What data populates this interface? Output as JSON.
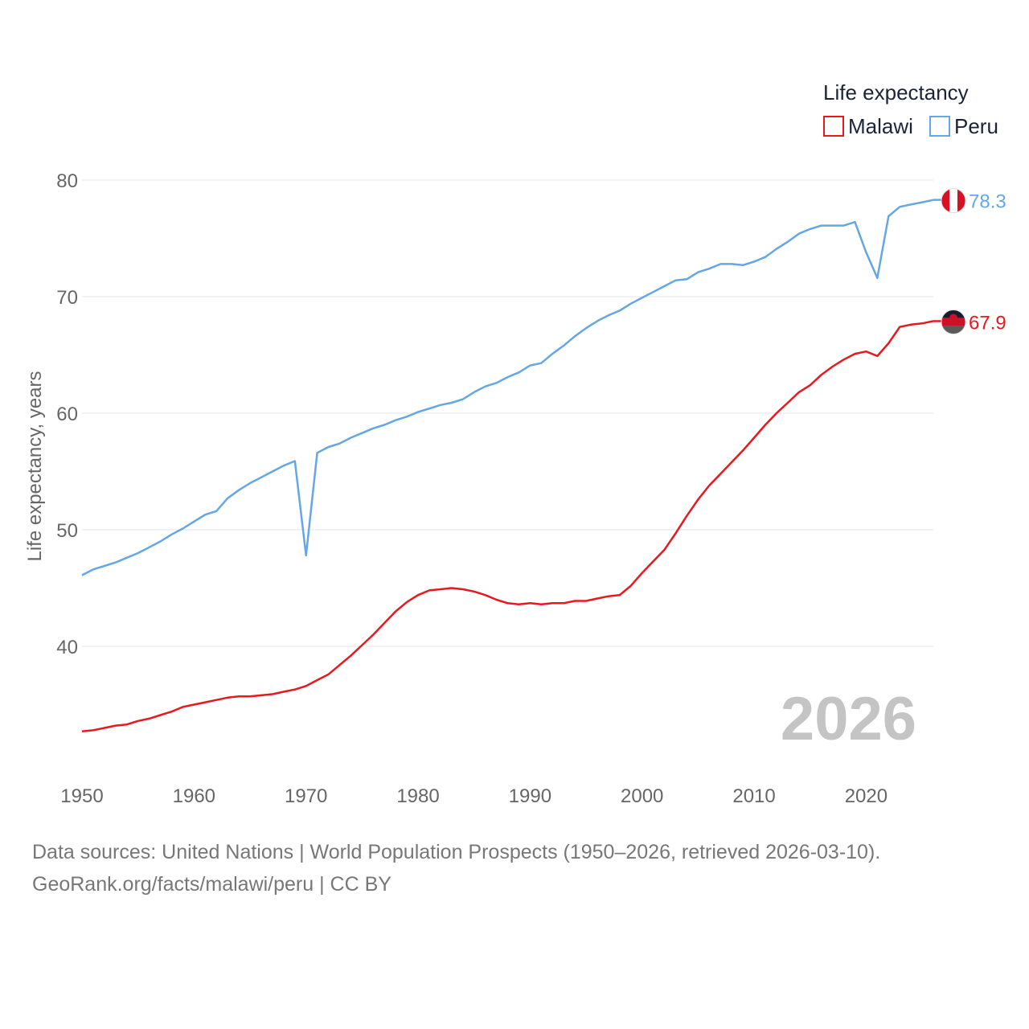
{
  "chart_data": {
    "type": "line",
    "legend_title": "Life expectancy",
    "ylabel": "Life expectancy, years",
    "xlabel": "",
    "ylim": [
      30,
      82
    ],
    "xlim": [
      1950,
      2026
    ],
    "yticks": [
      40,
      50,
      60,
      70,
      80
    ],
    "xticks": [
      1950,
      1960,
      1970,
      1980,
      1990,
      2000,
      2010,
      2020
    ],
    "grid": true,
    "legend_position": "top-right",
    "current_year": "2026",
    "x": [
      1950,
      1951,
      1952,
      1953,
      1954,
      1955,
      1956,
      1957,
      1958,
      1959,
      1960,
      1961,
      1962,
      1963,
      1964,
      1965,
      1966,
      1967,
      1968,
      1969,
      1970,
      1971,
      1972,
      1973,
      1974,
      1975,
      1976,
      1977,
      1978,
      1979,
      1980,
      1981,
      1982,
      1983,
      1984,
      1985,
      1986,
      1987,
      1988,
      1989,
      1990,
      1991,
      1992,
      1993,
      1994,
      1995,
      1996,
      1997,
      1998,
      1999,
      2000,
      2001,
      2002,
      2003,
      2004,
      2005,
      2006,
      2007,
      2008,
      2009,
      2010,
      2011,
      2012,
      2013,
      2014,
      2015,
      2016,
      2017,
      2018,
      2019,
      2020,
      2021,
      2022,
      2023,
      2024,
      2025,
      2026
    ],
    "series": [
      {
        "name": "Malawi",
        "color": "#e8191e",
        "end_label": "67.9",
        "flag_icon": "malawi-flag-icon",
        "values": [
          32.7,
          32.8,
          33.0,
          33.2,
          33.3,
          33.6,
          33.8,
          34.1,
          34.4,
          34.8,
          35.0,
          35.2,
          35.4,
          35.6,
          35.7,
          35.7,
          35.8,
          35.9,
          36.1,
          36.3,
          36.6,
          37.1,
          37.6,
          38.4,
          39.2,
          40.1,
          41.0,
          42.0,
          43.0,
          43.8,
          44.4,
          44.8,
          44.9,
          45.0,
          44.9,
          44.7,
          44.4,
          44.0,
          43.7,
          43.6,
          43.7,
          43.6,
          43.7,
          43.7,
          43.9,
          43.9,
          44.1,
          44.3,
          44.4,
          45.2,
          46.3,
          47.3,
          48.3,
          49.7,
          51.2,
          52.6,
          53.8,
          54.8,
          55.8,
          56.8,
          57.9,
          59.0,
          60.0,
          60.9,
          61.8,
          62.4,
          63.3,
          64.0,
          64.6,
          65.1,
          65.3,
          64.9,
          66.0,
          67.4,
          67.6,
          67.7,
          67.9
        ]
      },
      {
        "name": "Peru",
        "color": "#64a6e6",
        "end_label": "78.3",
        "flag_icon": "peru-flag-icon",
        "values": [
          46.1,
          46.6,
          46.9,
          47.2,
          47.6,
          48.0,
          48.5,
          49.0,
          49.6,
          50.1,
          50.7,
          51.3,
          51.6,
          52.7,
          53.4,
          54.0,
          54.5,
          55.0,
          55.5,
          55.9,
          47.8,
          56.6,
          57.1,
          57.4,
          57.9,
          58.3,
          58.7,
          59.0,
          59.4,
          59.7,
          60.1,
          60.4,
          60.7,
          60.9,
          61.2,
          61.8,
          62.3,
          62.6,
          63.1,
          63.5,
          64.1,
          64.3,
          65.1,
          65.8,
          66.6,
          67.3,
          67.9,
          68.4,
          68.8,
          69.4,
          69.9,
          70.4,
          70.9,
          71.4,
          71.5,
          72.1,
          72.4,
          72.8,
          72.8,
          72.7,
          73.0,
          73.4,
          74.1,
          74.7,
          75.4,
          75.8,
          76.1,
          76.1,
          76.1,
          76.4,
          73.8,
          71.6,
          76.9,
          77.7,
          77.9,
          78.1,
          78.3
        ]
      }
    ]
  },
  "footer": {
    "source_line": "Data sources: United Nations | World Population Prospects (1950–2026, retrieved 2026-03-10).",
    "site_line": "GeoRank.org/facts/malawi/peru | CC BY"
  }
}
